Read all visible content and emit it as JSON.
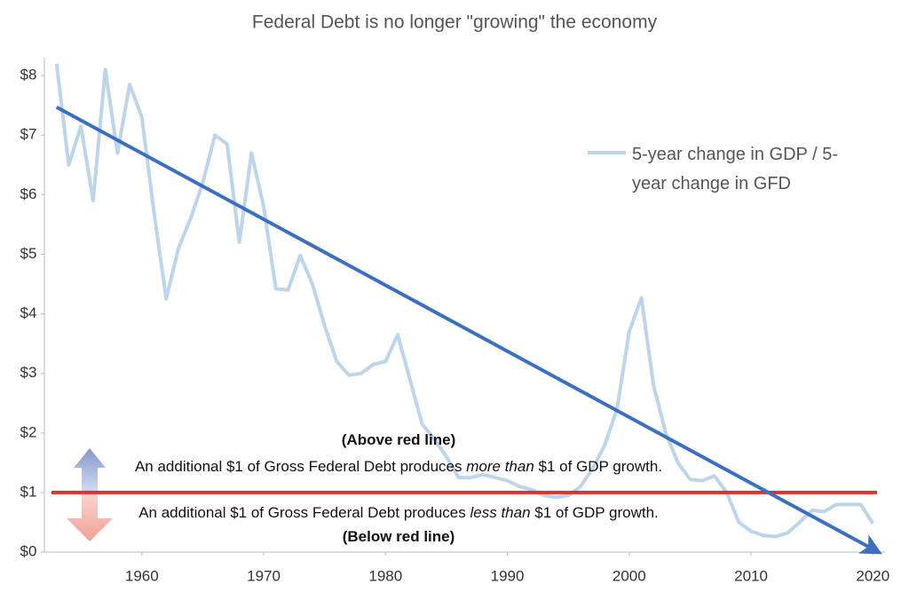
{
  "chart_data": {
    "type": "line",
    "title": "Federal Debt is no longer \"growing\" the economy",
    "x": [
      1953,
      1954,
      1955,
      1956,
      1957,
      1958,
      1959,
      1960,
      1961,
      1962,
      1963,
      1964,
      1965,
      1966,
      1967,
      1968,
      1969,
      1970,
      1971,
      1972,
      1973,
      1974,
      1975,
      1976,
      1977,
      1978,
      1979,
      1980,
      1981,
      1982,
      1983,
      1984,
      1985,
      1986,
      1987,
      1988,
      1989,
      1990,
      1991,
      1992,
      1993,
      1994,
      1995,
      1996,
      1997,
      1998,
      1999,
      2000,
      2001,
      2002,
      2003,
      2004,
      2005,
      2006,
      2007,
      2008,
      2009,
      2010,
      2011,
      2012,
      2013,
      2014,
      2015,
      2016,
      2017,
      2018,
      2019,
      2020
    ],
    "series": [
      {
        "name": "5-year change in GDP / 5-year change in GFD",
        "color": "#bcd5ea",
        "values": [
          8.2,
          6.5,
          7.15,
          5.9,
          8.1,
          6.7,
          7.85,
          7.3,
          5.7,
          4.25,
          5.1,
          5.6,
          6.2,
          7.0,
          6.85,
          5.2,
          6.7,
          5.8,
          4.42,
          4.4,
          4.98,
          4.5,
          3.8,
          3.2,
          2.97,
          3.0,
          3.15,
          3.2,
          3.65,
          2.9,
          2.15,
          1.9,
          1.6,
          1.25,
          1.25,
          1.3,
          1.25,
          1.2,
          1.1,
          1.05,
          0.95,
          0.92,
          0.95,
          1.1,
          1.4,
          1.8,
          2.4,
          3.7,
          4.27,
          2.8,
          2.0,
          1.5,
          1.22,
          1.2,
          1.28,
          1.0,
          0.5,
          0.35,
          0.28,
          0.26,
          0.32,
          0.5,
          0.7,
          0.68,
          0.8,
          0.8,
          0.8,
          0.48
        ]
      }
    ],
    "trend": {
      "color": "#3b6fc0",
      "x": [
        1953,
        2020
      ],
      "values": [
        7.47,
        0.05
      ]
    },
    "reference_line": {
      "color": "#d9342b",
      "value": 1
    },
    "xlim": [
      1952,
      2021
    ],
    "xticks": [
      1960,
      1970,
      1980,
      1990,
      2000,
      2010,
      2020
    ],
    "ylim": [
      0,
      8.3
    ],
    "yticks": [
      {
        "value": 0,
        "label": "$0"
      },
      {
        "value": 1,
        "label": "$1"
      },
      {
        "value": 2,
        "label": "$2"
      },
      {
        "value": 3,
        "label": "$3"
      },
      {
        "value": 4,
        "label": "$4"
      },
      {
        "value": 5,
        "label": "$5"
      },
      {
        "value": 6,
        "label": "$6"
      },
      {
        "value": 7,
        "label": "$7"
      },
      {
        "value": 8,
        "label": "$8"
      }
    ],
    "annotations": [
      {
        "parts": [
          {
            "text": "(Above red line)",
            "bold": true
          }
        ]
      },
      {
        "parts": [
          {
            "text": "An additional $1 of Gross Federal Debt produces "
          },
          {
            "text": "more than",
            "italic": true
          },
          {
            "text": " $1 of GDP growth."
          }
        ]
      },
      {
        "parts": [
          {
            "text": "An additional $1 of Gross Federal Debt produces "
          },
          {
            "text": "less than",
            "italic": true
          },
          {
            "text": " $1 of GDP growth."
          }
        ]
      },
      {
        "parts": [
          {
            "text": "(Below red line)",
            "bold": true
          }
        ]
      }
    ]
  }
}
